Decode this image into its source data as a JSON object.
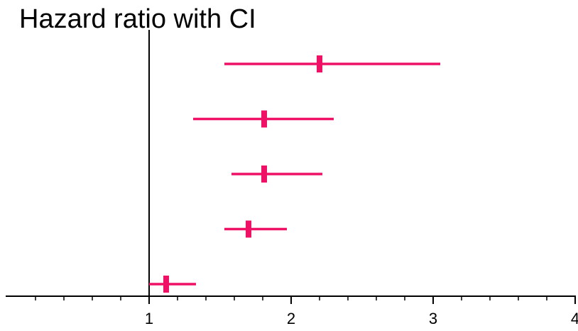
{
  "chart_data": {
    "type": "forest",
    "title": "Hazard ratio with CI",
    "xlabel": "",
    "ylabel": "",
    "xlim": [
      0,
      4
    ],
    "x_ticks": [
      1,
      2,
      3,
      4
    ],
    "x_tick_labels": [
      "1",
      "2",
      "3",
      "4"
    ],
    "reference_line": 1,
    "grid": false,
    "series": [
      {
        "values": [
          {
            "estimate": 2.2,
            "lower": 1.53,
            "upper": 3.05
          },
          {
            "estimate": 1.81,
            "lower": 1.31,
            "upper": 2.3
          },
          {
            "estimate": 1.81,
            "lower": 1.58,
            "upper": 2.22
          },
          {
            "estimate": 1.7,
            "lower": 1.53,
            "upper": 1.97
          },
          {
            "estimate": 1.12,
            "lower": 1.0,
            "upper": 1.33
          }
        ]
      }
    ]
  },
  "colors": {
    "interval": "#ee1166",
    "axis": "#000000",
    "background": "#ffffff"
  }
}
